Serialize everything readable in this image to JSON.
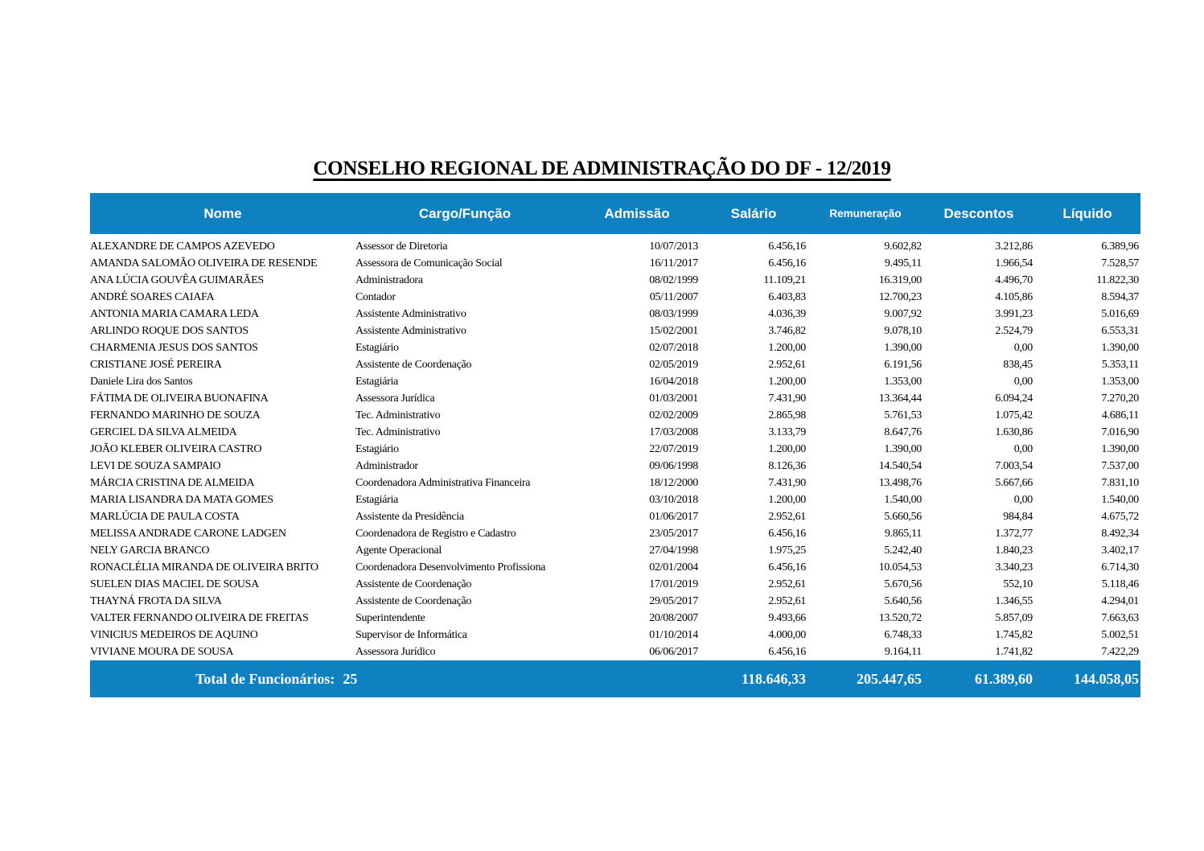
{
  "title": "CONSELHO REGIONAL DE ADMINISTRAÇÃO DO DF - 12/2019",
  "colors": {
    "bar_blue": "#0f80c0",
    "bar_text": "#ffffff",
    "body_text": "#000000",
    "page_bg": "#ffffff"
  },
  "table": {
    "fields": [
      "nome",
      "cargo",
      "admissao",
      "salario",
      "remuneracao",
      "descontos",
      "liquido"
    ],
    "columns": [
      {
        "key": "nome",
        "label": "Nome"
      },
      {
        "key": "cargo",
        "label": "Cargo/Função"
      },
      {
        "key": "admissao",
        "label": "Admissão"
      },
      {
        "key": "salario",
        "label": "Salário"
      },
      {
        "key": "remuneracao",
        "label": "Remuneração"
      },
      {
        "key": "descontos",
        "label": "Descontos"
      },
      {
        "key": "liquido",
        "label": "Líquido"
      }
    ],
    "rows": [
      [
        "ALEXANDRE DE CAMPOS AZEVEDO",
        "Assessor de Diretoria",
        "10/07/2013",
        "6.456,16",
        "9.602,82",
        "3.212,86",
        "6.389,96"
      ],
      [
        "AMANDA SALOMÃO OLIVEIRA DE RESENDE",
        "Assessora de Comunicação Social",
        "16/11/2017",
        "6.456,16",
        "9.495,11",
        "1.966,54",
        "7.528,57"
      ],
      [
        "ANA LÚCIA GOUVÊA GUIMARÃES",
        "Administradora",
        "08/02/1999",
        "11.109,21",
        "16.319,00",
        "4.496,70",
        "11.822,30"
      ],
      [
        "ANDRÉ SOARES CAIAFA",
        "Contador",
        "05/11/2007",
        "6.403,83",
        "12.700,23",
        "4.105,86",
        "8.594,37"
      ],
      [
        "ANTONIA MARIA CAMARA LEDA",
        "Assistente Administrativo",
        "08/03/1999",
        "4.036,39",
        "9.007,92",
        "3.991,23",
        "5.016,69"
      ],
      [
        "ARLINDO ROQUE DOS SANTOS",
        "Assistente Administrativo",
        "15/02/2001",
        "3.746,82",
        "9.078,10",
        "2.524,79",
        "6.553,31"
      ],
      [
        "CHARMENIA JESUS DOS SANTOS",
        "Estagiário",
        "02/07/2018",
        "1.200,00",
        "1.390,00",
        "0,00",
        "1.390,00"
      ],
      [
        "CRISTIANE JOSÉ PEREIRA",
        "Assistente de Coordenação",
        "02/05/2019",
        "2.952,61",
        "6.191,56",
        "838,45",
        "5.353,11"
      ],
      [
        "Daniele Lira dos Santos",
        "Estagiária",
        "16/04/2018",
        "1.200,00",
        "1.353,00",
        "0,00",
        "1.353,00"
      ],
      [
        "FÁTIMA DE OLIVEIRA BUONAFINA",
        "Assessora Jurídica",
        "01/03/2001",
        "7.431,90",
        "13.364,44",
        "6.094,24",
        "7.270,20"
      ],
      [
        "FERNANDO MARINHO DE SOUZA",
        "Tec. Administrativo",
        "02/02/2009",
        "2.865,98",
        "5.761,53",
        "1.075,42",
        "4.686,11"
      ],
      [
        "GERCIEL DA SILVA ALMEIDA",
        "Tec. Administrativo",
        "17/03/2008",
        "3.133,79",
        "8.647,76",
        "1.630,86",
        "7.016,90"
      ],
      [
        "JOÃO KLEBER OLIVEIRA CASTRO",
        "Estagiário",
        "22/07/2019",
        "1.200,00",
        "1.390,00",
        "0,00",
        "1.390,00"
      ],
      [
        "LEVI DE SOUZA SAMPAIO",
        "Administrador",
        "09/06/1998",
        "8.126,36",
        "14.540,54",
        "7.003,54",
        "7.537,00"
      ],
      [
        "MÁRCIA CRISTINA DE ALMEIDA",
        "Coordenadora Administrativa Financeira",
        "18/12/2000",
        "7.431,90",
        "13.498,76",
        "5.667,66",
        "7.831,10"
      ],
      [
        "MARIA LISANDRA DA MATA GOMES",
        "Estagiária",
        "03/10/2018",
        "1.200,00",
        "1.540,00",
        "0,00",
        "1.540,00"
      ],
      [
        "MARLÚCIA DE PAULA COSTA",
        "Assistente da Presidência",
        "01/06/2017",
        "2.952,61",
        "5.660,56",
        "984,84",
        "4.675,72"
      ],
      [
        "MELISSA ANDRADE CARONE LADGEN",
        "Coordenadora de Registro e Cadastro",
        "23/05/2017",
        "6.456,16",
        "9.865,11",
        "1.372,77",
        "8.492,34"
      ],
      [
        "NELY GARCIA BRANCO",
        "Agente Operacional",
        "27/04/1998",
        "1.975,25",
        "5.242,40",
        "1.840,23",
        "3.402,17"
      ],
      [
        "RONACLÉLIA MIRANDA DE OLIVEIRA BRITO",
        "Coordenadora Desenvolvimento Profissiona",
        "02/01/2004",
        "6.456,16",
        "10.054,53",
        "3.340,23",
        "6.714,30"
      ],
      [
        "SUELEN DIAS MACIEL DE SOUSA",
        "Assistente de Coordenação",
        "17/01/2019",
        "2.952,61",
        "5.670,56",
        "552,10",
        "5.118,46"
      ],
      [
        "THAYNÁ FROTA DA SILVA",
        "Assistente de Coordenação",
        "29/05/2017",
        "2.952,61",
        "5.640,56",
        "1.346,55",
        "4.294,01"
      ],
      [
        "VALTER FERNANDO OLIVEIRA DE FREITAS",
        "Superintendente",
        "20/08/2007",
        "9.493,66",
        "13.520,72",
        "5.857,09",
        "7.663,63"
      ],
      [
        "VINICIUS MEDEIROS DE AQUINO",
        "Supervisor de Informática",
        "01/10/2014",
        "4.000,00",
        "6.748,33",
        "1.745,82",
        "5.002,51"
      ],
      [
        "VIVIANE MOURA DE SOUSA",
        "Assessora Jurídico",
        "06/06/2017",
        "6.456,16",
        "9.164,11",
        "1.741,82",
        "7.422,29"
      ]
    ]
  },
  "footer": {
    "label": "Total de Funcionários:",
    "count": "25",
    "totals": {
      "salario": "118.646,33",
      "remuneracao": "205.447,65",
      "descontos": "61.389,60",
      "liquido": "144.058,05"
    }
  }
}
